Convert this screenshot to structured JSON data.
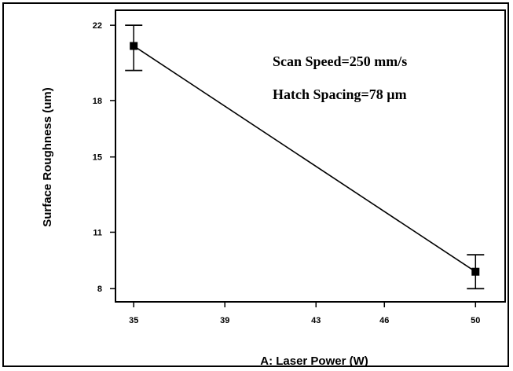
{
  "chart_data": {
    "type": "line",
    "title": "",
    "xlabel": "A: Laser Power (W)",
    "ylabel": "Surface Roughness (um)",
    "x_ticks": [
      "35",
      "39",
      "43",
      "46",
      "50"
    ],
    "y_ticks": [
      "8",
      "11",
      "15",
      "18",
      "22"
    ],
    "xlim": [
      34.2,
      51.3
    ],
    "ylim": [
      7.3,
      22.8
    ],
    "grid": false,
    "series": [
      {
        "x": [
          35,
          50
        ],
        "y": [
          20.9,
          8.9
        ],
        "error_low": [
          19.6,
          8.0
        ],
        "error_high": [
          22.0,
          9.8
        ]
      }
    ],
    "annotations": [
      "Scan Speed=250 mm/s",
      "Hatch Spacing=78 µm"
    ],
    "colors": {
      "line": "#000000",
      "marker": "#000000",
      "background": "#ffffff"
    }
  }
}
